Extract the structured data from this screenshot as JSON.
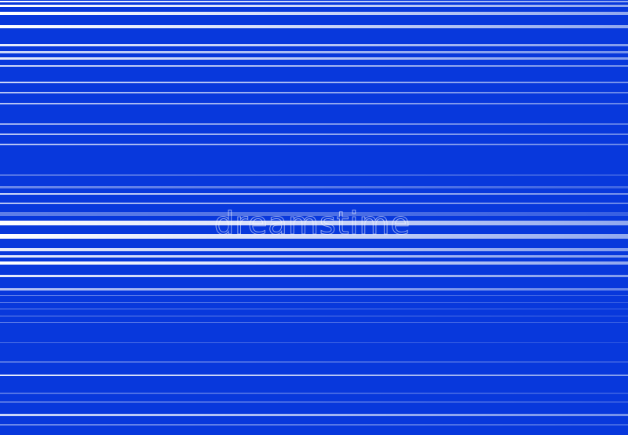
{
  "image": {
    "description_colors": {
      "background": "#0838dc",
      "stripe_light": "#ffffff",
      "stripe_mid": "#4f78ea"
    },
    "watermark": "dreamstime"
  }
}
